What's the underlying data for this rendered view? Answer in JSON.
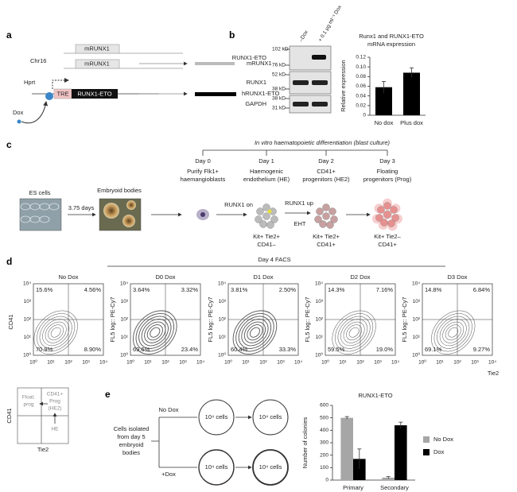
{
  "panel_a": {
    "label": "a",
    "gene_top": "mRUNX1",
    "chr": "Chr16",
    "gene_mid": "mRUNX1",
    "product_mid": "mRUNX1",
    "hprt": "Hprt",
    "tre": "TRE",
    "construct": "RUNX1-ETO",
    "product_bottom": "hRUNX1-ETO",
    "dox": "Dox"
  },
  "panel_b": {
    "label": "b",
    "lanes": [
      "–Dox",
      "+ 0.1 μg ml⁻¹ Dox"
    ],
    "blots": [
      {
        "name": "RUNX1-ETO",
        "markers": [
          "102 kD",
          "76 kD"
        ]
      },
      {
        "name": "RUNX1",
        "markers": [
          "52 kD",
          "38 kD"
        ]
      },
      {
        "name": "GAPDH",
        "markers": [
          "38 kD",
          "31 kD"
        ]
      }
    ],
    "chart": {
      "type": "bar",
      "title": [
        "Runx1 and RUNX1-ETO",
        "mRNA expression"
      ],
      "ylabel": "Relative expression",
      "categories": [
        "No dox",
        "Plus dox"
      ],
      "values": [
        0.058,
        0.088
      ],
      "errors": [
        0.012,
        0.01
      ],
      "color": "#000000",
      "ylim": [
        0,
        0.12
      ],
      "yticks": [
        0,
        0.02,
        0.04,
        0.06,
        0.08,
        {
          "value": 0.1,
          "label": "0.10"
        },
        0.12
      ]
    }
  },
  "panel_c": {
    "label": "c",
    "title": "In vitro haematopoietic differentiation (blast culture)",
    "days": [
      {
        "day": "Day 0",
        "desc": [
          "Purify Flk1+",
          "haemangioblasts"
        ]
      },
      {
        "day": "Day 1",
        "desc": [
          "Haemogenic",
          "endothelium (HE)"
        ]
      },
      {
        "day": "Day 2",
        "desc": [
          "CD41+",
          "progenitors (HE2)"
        ]
      },
      {
        "day": "Day 3",
        "desc": [
          "Floating",
          "progenitors (Prog)"
        ]
      }
    ],
    "es": "ES cells",
    "time": "3.75 days",
    "eb": "Embryoid bodies",
    "on": "RUNX1 on",
    "up": "RUNX1 up",
    "eht": "EHT",
    "phenotypes": [
      [
        "Kit+ Tie2+",
        "CD41–"
      ],
      [
        "Kit+ Tie2+",
        "CD41+"
      ],
      [
        "Kit+ Tie2–",
        "CD41+"
      ]
    ]
  },
  "panel_d": {
    "label": "d",
    "title": "Day 4 FACS",
    "ylabel": "CD41",
    "xlabel": "Tie2",
    "plot_ylabel": "FL5 log:: PE-Cy7",
    "ticks": [
      "10⁰",
      "10¹",
      "10²",
      "10³",
      "10⁴"
    ],
    "plots": [
      {
        "title": "No Dox",
        "quadrants": [
          "15.6%",
          "4.56%",
          "70.9%",
          "8.90%"
        ]
      },
      {
        "title": "D0 Dox",
        "quadrants": [
          "3.64%",
          "3.32%",
          "69.6%",
          "23.4%"
        ]
      },
      {
        "title": "D1 Dox",
        "quadrants": [
          "3.81%",
          "2.50%",
          "60.4%",
          "33.3%"
        ]
      },
      {
        "title": "D2 Dox",
        "quadrants": [
          "14.3%",
          "7.16%",
          "59.5%",
          "19.0%"
        ]
      },
      {
        "title": "D3 Dox",
        "quadrants": [
          "14.8%",
          "6.84%",
          "69.1%",
          "9.27%"
        ]
      }
    ]
  },
  "panel_d_key": {
    "ylabel": "CD41",
    "xlabel": "Tie2",
    "float": [
      "Float.",
      "prog"
    ],
    "prog": [
      "CD41+",
      "Prog",
      "(HE2)"
    ],
    "he": "HE"
  },
  "panel_e": {
    "label": "e",
    "source": [
      "Cells isolated",
      "from day 5",
      "embryoid",
      "bodies"
    ],
    "conditions": [
      "No Dox",
      "+Dox"
    ],
    "cells": "10⁴ cells",
    "chart": {
      "type": "bar",
      "title": "RUNX1-ETO",
      "ylabel": "Number of colonies",
      "categories": [
        "Primary",
        "Secondary"
      ],
      "series": [
        {
          "name": "No Dox",
          "color": "#a6a6a6",
          "values": [
            500,
            20
          ],
          "errors": [
            10,
            8
          ]
        },
        {
          "name": "Dox",
          "color": "#000000",
          "values": [
            170,
            440
          ],
          "errors": [
            80,
            25
          ]
        }
      ],
      "ylim": [
        0,
        600
      ],
      "yticks": [
        0,
        100,
        200,
        300,
        400,
        500,
        600
      ]
    }
  }
}
